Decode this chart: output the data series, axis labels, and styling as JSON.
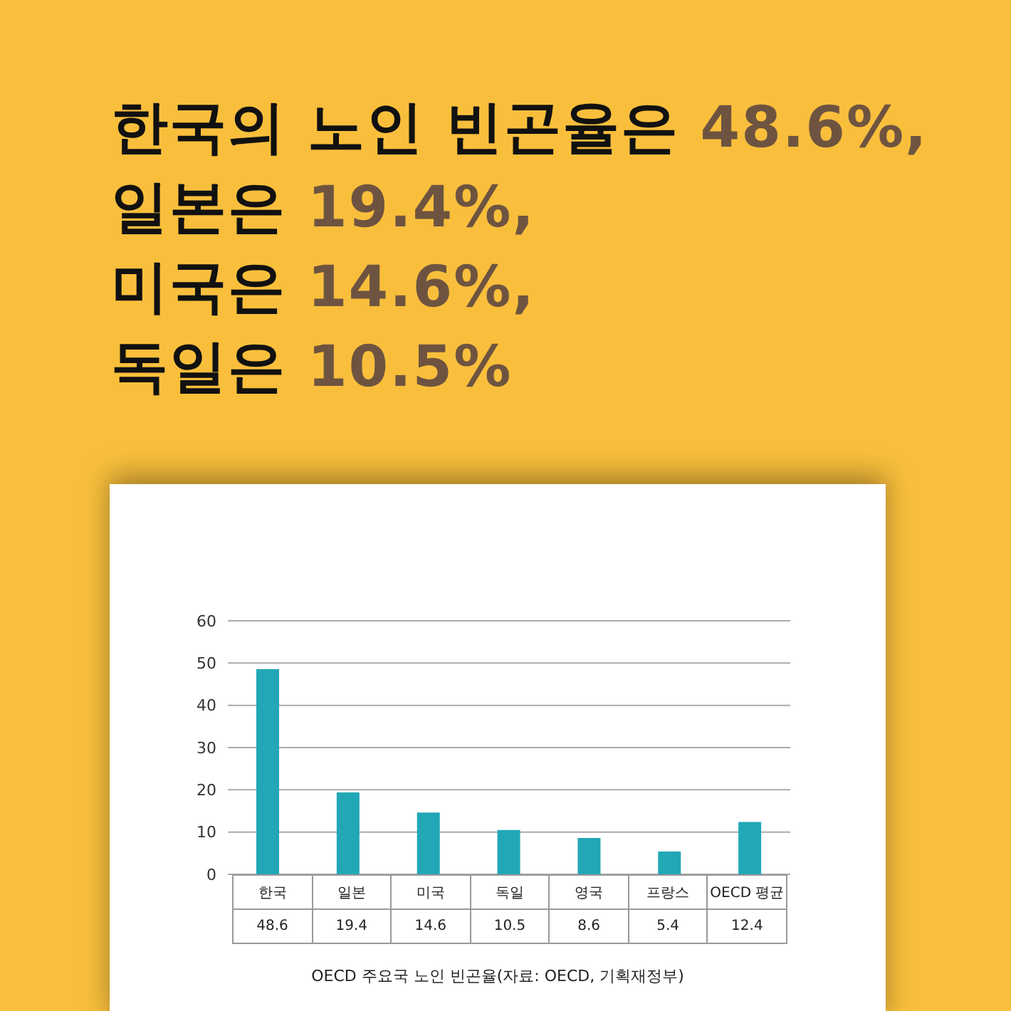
{
  "chart_data": {
    "type": "bar",
    "title": "한국의 노인 빈곤율은 48.6%,\n일본은 19.4%,\n미국은 14.6%,\n독일은 10.5%",
    "categories": [
      "한국",
      "일본",
      "미국",
      "독일",
      "영국",
      "프랑스",
      "OECD 평균"
    ],
    "values": [
      48.6,
      19.4,
      14.6,
      10.5,
      8.6,
      5.4,
      12.4
    ],
    "color": "#22a7b6",
    "ylim": [
      0,
      60
    ],
    "yticks": [
      0,
      10,
      20,
      30,
      40,
      50,
      60
    ],
    "grid": "y",
    "data_labels": true,
    "annotations": [
      "OECD 주요국 노인 빈곤율(자료: OECD, 기획재정부)"
    ]
  }
}
